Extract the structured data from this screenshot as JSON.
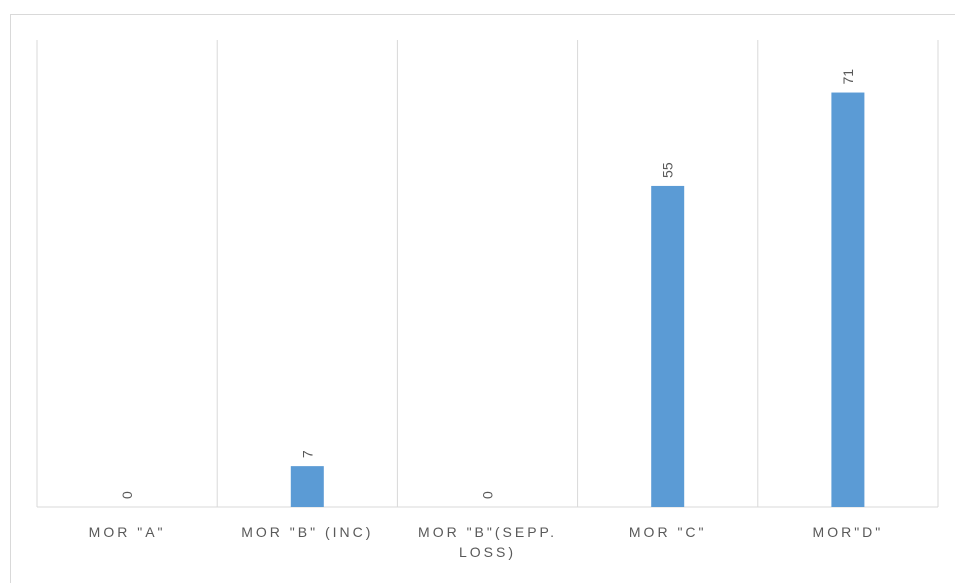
{
  "chart_data": {
    "type": "bar",
    "categories": [
      [
        "MOR \"A\""
      ],
      [
        "MOR \"B\" (INC)"
      ],
      [
        "MOR \"B\"(SEPP.",
        "LOSS)"
      ],
      [
        "MOR \"C\""
      ],
      [
        "MOR\"D\""
      ]
    ],
    "values": [
      0,
      7,
      0,
      55,
      71
    ],
    "title": "",
    "xlabel": "",
    "ylabel": "",
    "ylim": [
      0,
      80
    ],
    "grid": "vertical category separators",
    "legend": "none",
    "bar_color": "#5b9bd5",
    "grid_color": "#d9d9d9",
    "label_color": "#595959"
  }
}
